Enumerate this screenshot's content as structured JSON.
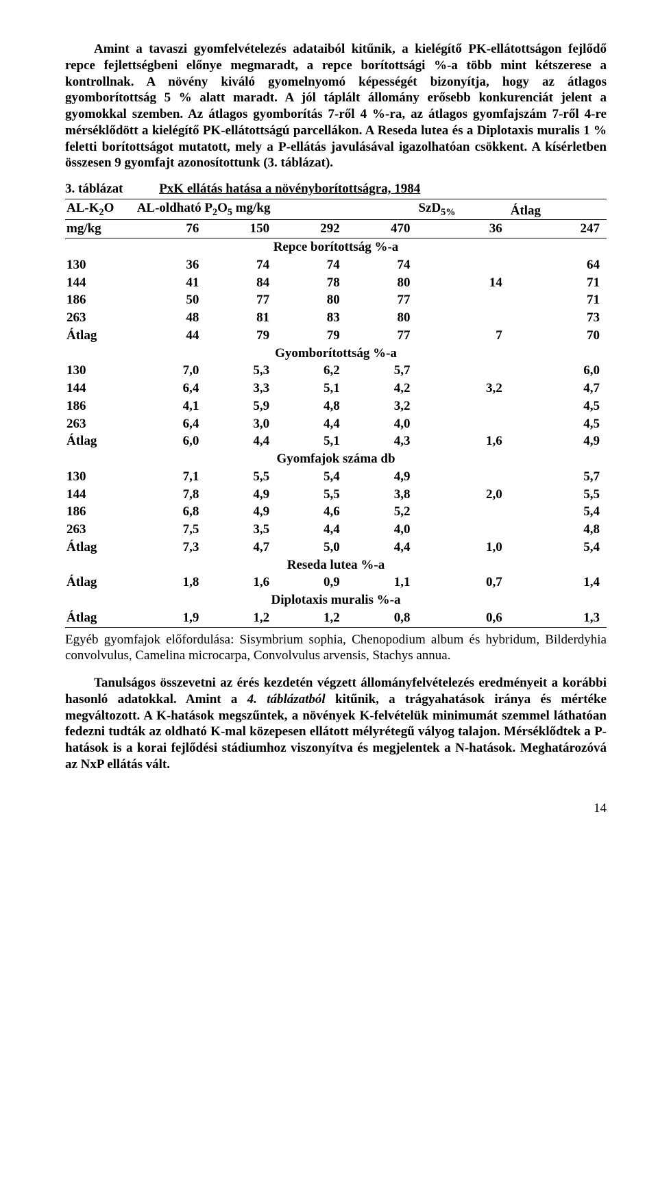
{
  "para1": "Amint a tavaszi gyomfelvételezés adataiból kitűnik, a kielégítő PK-ellátottságon fejlődő repce fejlettségbeni előnye megmaradt, a repce borítottsági %-a több mint kétszerese a kontrollnak. A növény kiváló gyomelnyomó képességét bizonyítja, hogy az átlagos gyomborítottság 5 % alatt maradt. A jól táplált állomány erősebb konkurenciát jelent a gyomokkal szemben. Az átlagos gyomborítás 7-ről 4 %-ra, az átlagos gyomfajszám 7-ről 4-re mérséklődött a kielégítő PK-ellátottságú parcellákon. A Reseda lutea és a Diplotaxis muralis 1 % feletti borítottságot mutatott, mely a P-ellátás javulásával igazolhatóan csökkent. A kísérletben összesen 9 gyomfajt azonosítottunk (3. táblázat).",
  "table": {
    "num": "3. táblázat",
    "caption": "PxK ellátás hatása a növényborítottságra, 1984",
    "h_alk2o": "AL-K₂O",
    "h_alp": "AL-oldható P₂O₅ mg/kg",
    "h_szd": "SzD₅%",
    "h_atlag": "Átlag",
    "h_mgkg": "mg/kg",
    "p_cols": [
      "76",
      "150",
      "292",
      "470"
    ],
    "szd_col": "36",
    "atlag_col": "247",
    "sections": [
      {
        "title": "Repce borítottság %-a",
        "rows": [
          {
            "k": "130",
            "v": [
              "36",
              "74",
              "74",
              "74"
            ],
            "szd": "",
            "a": "64"
          },
          {
            "k": "144",
            "v": [
              "41",
              "84",
              "78",
              "80"
            ],
            "szd": "14",
            "a": "71"
          },
          {
            "k": "186",
            "v": [
              "50",
              "77",
              "80",
              "77"
            ],
            "szd": "",
            "a": "71"
          },
          {
            "k": "263",
            "v": [
              "48",
              "81",
              "83",
              "80"
            ],
            "szd": "",
            "a": "73"
          },
          {
            "k": "Átlag",
            "v": [
              "44",
              "79",
              "79",
              "77"
            ],
            "szd": "7",
            "a": "70"
          }
        ]
      },
      {
        "title": "Gyomborítottság %-a",
        "rows": [
          {
            "k": "130",
            "v": [
              "7,0",
              "5,3",
              "6,2",
              "5,7"
            ],
            "szd": "",
            "a": "6,0"
          },
          {
            "k": "144",
            "v": [
              "6,4",
              "3,3",
              "5,1",
              "4,2"
            ],
            "szd": "3,2",
            "a": "4,7"
          },
          {
            "k": "186",
            "v": [
              "4,1",
              "5,9",
              "4,8",
              "3,2"
            ],
            "szd": "",
            "a": "4,5"
          },
          {
            "k": "263",
            "v": [
              "6,4",
              "3,0",
              "4,4",
              "4,0"
            ],
            "szd": "",
            "a": "4,5"
          },
          {
            "k": "Átlag",
            "v": [
              "6,0",
              "4,4",
              "5,1",
              "4,3"
            ],
            "szd": "1,6",
            "a": "4,9"
          }
        ]
      },
      {
        "title": "Gyomfajok száma db",
        "rows": [
          {
            "k": "130",
            "v": [
              "7,1",
              "5,5",
              "5,4",
              "4,9"
            ],
            "szd": "",
            "a": "5,7"
          },
          {
            "k": "144",
            "v": [
              "7,8",
              "4,9",
              "5,5",
              "3,8"
            ],
            "szd": "2,0",
            "a": "5,5"
          },
          {
            "k": "186",
            "v": [
              "6,8",
              "4,9",
              "4,6",
              "5,2"
            ],
            "szd": "",
            "a": "5,4"
          },
          {
            "k": "263",
            "v": [
              "7,5",
              "3,5",
              "4,4",
              "4,0"
            ],
            "szd": "",
            "a": "4,8"
          },
          {
            "k": "Átlag",
            "v": [
              "7,3",
              "4,7",
              "5,0",
              "4,4"
            ],
            "szd": "1,0",
            "a": "5,4"
          }
        ]
      },
      {
        "title": "Reseda lutea %-a",
        "rows": [
          {
            "k": "Átlag",
            "v": [
              "1,8",
              "1,6",
              "0,9",
              "1,1"
            ],
            "szd": "0,7",
            "a": "1,4"
          }
        ]
      },
      {
        "title": "Diplotaxis muralis %-a",
        "rows": [
          {
            "k": "Átlag",
            "v": [
              "1,9",
              "1,2",
              "1,2",
              "0,8"
            ],
            "szd": "0,6",
            "a": "1,3"
          }
        ]
      }
    ],
    "footnote_pre": "Egyéb gyomfajok előfordulása: ",
    "footnote_species": "Sisymbrium sophia, Chenopodium album és hybridum, Bilderdyhia convolvulus, Camelina microcarpa, Convolvulus arvensis, Stachys annua."
  },
  "para2_a": "Tanulságos összevetni az érés kezdetén végzett állományfelvételezés eredményeit a korábbi hasonló adatokkal. Amint a ",
  "para2_b": "4. táblázatból",
  "para2_c": " kitűnik, a trágyahatások iránya és mértéke megváltozott. A K-hatások megszűntek, a növények K-felvételük minimumát szemmel láthatóan fedezni tudták az oldható K-mal közepesen ellátott mélyrétegű vályog talajon. Mérséklődtek a P-hatások is a korai fejlődési stádiumhoz viszonyítva és megjelentek a N-hatások. Meghatározóvá az NxP ellátás vált.",
  "pagenum": "14"
}
